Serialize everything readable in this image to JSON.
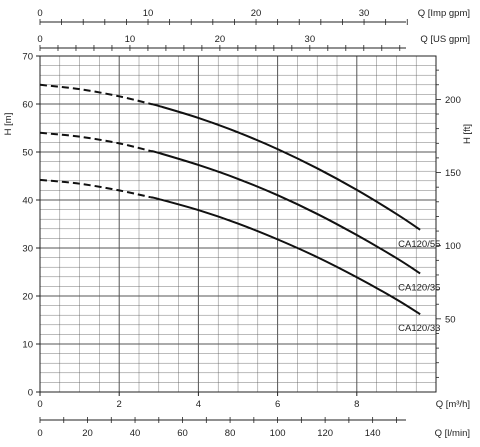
{
  "chart_data": {
    "type": "line",
    "title": "",
    "axes": {
      "x_primary": {
        "label": "Q [m³/h]",
        "min": 0,
        "max": 10,
        "ticks": [
          "0",
          "2",
          "4",
          "6",
          "8"
        ],
        "tick_values": [
          0,
          2,
          4,
          6,
          8
        ]
      },
      "x_lpm": {
        "label": "Q [l/min]",
        "ticks": [
          "0",
          "20",
          "40",
          "60",
          "80",
          "100",
          "120",
          "140"
        ],
        "tick_values": [
          0,
          20,
          40,
          60,
          80,
          100,
          120,
          140
        ]
      },
      "x_usgpm": {
        "label": "Q [US gpm]",
        "ticks": [
          "0",
          "10",
          "20",
          "30"
        ],
        "tick_values": [
          0,
          10,
          20,
          30
        ]
      },
      "x_impgpm": {
        "label": "Q [Imp gpm]",
        "ticks": [
          "0",
          "10",
          "20",
          "30"
        ],
        "tick_values": [
          0,
          10,
          20,
          30
        ]
      },
      "y_left": {
        "label": "H [m]",
        "min": 0,
        "max": 70,
        "ticks": [
          "0",
          "10",
          "20",
          "30",
          "40",
          "50",
          "60",
          "70"
        ],
        "tick_values": [
          0,
          10,
          20,
          30,
          40,
          50,
          60,
          70
        ]
      },
      "y_right": {
        "label": "H [ft]",
        "ticks": [
          "50",
          "100",
          "150",
          "200"
        ],
        "tick_values": [
          50,
          100,
          150,
          200
        ]
      }
    },
    "grid": true,
    "dashed_until_x": 2.8,
    "series": [
      {
        "name": "CA120/55",
        "x": [
          0,
          1,
          2,
          3,
          4,
          5,
          6,
          7,
          8,
          9,
          9.6
        ],
        "y": [
          64,
          63.1,
          61.6,
          59.6,
          57.1,
          54.1,
          50.6,
          46.6,
          42.1,
          37.1,
          33.8
        ]
      },
      {
        "name": "CA120/35",
        "x": [
          0,
          1,
          2,
          3,
          4,
          5,
          6,
          7,
          8,
          9,
          9.6
        ],
        "y": [
          54,
          53.2,
          51.8,
          49.8,
          47.3,
          44.4,
          41,
          37.1,
          32.7,
          27.9,
          24.7
        ]
      },
      {
        "name": "CA120/33",
        "x": [
          0,
          1,
          2,
          3,
          4,
          5,
          6,
          7,
          8,
          9,
          9.6
        ],
        "y": [
          44.2,
          43.4,
          42,
          40.2,
          37.9,
          35.1,
          31.8,
          28.1,
          23.9,
          19.3,
          16.2
        ]
      }
    ],
    "line_color": "#111111",
    "grid_color": "#555555"
  }
}
